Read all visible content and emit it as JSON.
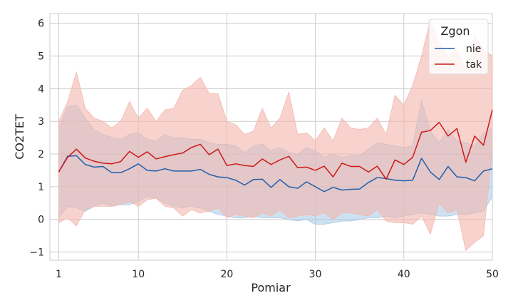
{
  "chart_data": {
    "type": "line",
    "xlabel": "Pomiar",
    "ylabel": "CO2TET",
    "xlim": [
      0,
      50
    ],
    "ylim": [
      -1.25,
      6.3
    ],
    "xticks": [
      1,
      10,
      20,
      30,
      40,
      50
    ],
    "yticks": [
      -1,
      0,
      1,
      2,
      3,
      4,
      5,
      6
    ],
    "ytick_labels": [
      "−1",
      "0",
      "1",
      "2",
      "3",
      "4",
      "5",
      "6"
    ],
    "grid": true,
    "legend": {
      "title": "Zgon",
      "position": "top-right"
    },
    "x": [
      1,
      2,
      3,
      4,
      5,
      6,
      7,
      8,
      9,
      10,
      11,
      12,
      13,
      14,
      15,
      16,
      17,
      18,
      19,
      20,
      21,
      22,
      23,
      24,
      25,
      26,
      27,
      28,
      29,
      30,
      31,
      32,
      33,
      34,
      35,
      36,
      37,
      38,
      39,
      40,
      41,
      42,
      43,
      44,
      45,
      46,
      47,
      48,
      49,
      50
    ],
    "series": [
      {
        "name": "nie",
        "color": "#1f5fae",
        "band_color": "#a6c8e6",
        "values": [
          1.45,
          1.93,
          1.95,
          1.68,
          1.6,
          1.62,
          1.43,
          1.43,
          1.55,
          1.7,
          1.5,
          1.48,
          1.55,
          1.48,
          1.48,
          1.48,
          1.53,
          1.38,
          1.3,
          1.28,
          1.2,
          1.05,
          1.22,
          1.23,
          0.98,
          1.22,
          1.0,
          0.95,
          1.15,
          1.0,
          0.85,
          0.98,
          0.9,
          0.92,
          0.93,
          1.13,
          1.28,
          1.25,
          1.2,
          1.18,
          1.2,
          1.87,
          1.45,
          1.22,
          1.62,
          1.3,
          1.28,
          1.18,
          1.48,
          1.55
        ],
        "lower": [
          0.05,
          0.4,
          0.35,
          0.25,
          0.4,
          0.5,
          0.4,
          0.45,
          0.45,
          0.55,
          0.7,
          0.65,
          0.5,
          0.4,
          0.35,
          0.4,
          0.35,
          0.25,
          0.15,
          0.1,
          0.05,
          0.05,
          0.1,
          0.05,
          0.05,
          0.05,
          0.0,
          -0.05,
          0.0,
          -0.15,
          -0.15,
          -0.1,
          -0.05,
          -0.05,
          0.0,
          0.05,
          0.05,
          0.1,
          0.05,
          0.1,
          0.15,
          0.2,
          0.15,
          0.1,
          0.1,
          0.15,
          0.15,
          0.2,
          0.25,
          0.7
        ],
        "upper": [
          2.8,
          3.45,
          3.5,
          3.1,
          2.75,
          2.6,
          2.5,
          2.45,
          2.6,
          2.65,
          2.45,
          2.4,
          2.6,
          2.5,
          2.5,
          2.45,
          2.45,
          2.35,
          2.3,
          2.3,
          2.25,
          2.05,
          2.25,
          2.3,
          2.1,
          2.2,
          2.05,
          2.0,
          2.2,
          2.1,
          1.9,
          2.0,
          1.9,
          1.95,
          1.95,
          2.15,
          2.35,
          2.3,
          2.25,
          2.2,
          2.25,
          3.65,
          2.7,
          2.35,
          2.75,
          2.4,
          2.35,
          2.25,
          2.65,
          2.8
        ]
      },
      {
        "name": "tak",
        "color": "#cc1a1a",
        "band_color": "#f4b6ae",
        "values": [
          1.45,
          1.9,
          2.15,
          1.88,
          1.78,
          1.72,
          1.7,
          1.77,
          2.08,
          1.9,
          2.07,
          1.85,
          1.92,
          1.98,
          2.03,
          2.2,
          2.3,
          1.98,
          2.15,
          1.65,
          1.7,
          1.65,
          1.62,
          1.85,
          1.68,
          1.82,
          1.93,
          1.58,
          1.6,
          1.5,
          1.63,
          1.3,
          1.72,
          1.62,
          1.62,
          1.45,
          1.63,
          1.23,
          1.82,
          1.68,
          1.9,
          2.67,
          2.72,
          2.97,
          2.55,
          2.78,
          1.75,
          2.55,
          2.27,
          3.35
        ],
        "lower": [
          -0.1,
          0.05,
          -0.2,
          0.3,
          0.4,
          0.4,
          0.4,
          0.45,
          0.55,
          0.4,
          0.6,
          0.65,
          0.4,
          0.35,
          0.1,
          0.3,
          0.2,
          0.25,
          0.35,
          0.05,
          0.15,
          0.1,
          0.05,
          0.2,
          0.1,
          0.3,
          0.05,
          0.1,
          0.15,
          0.1,
          0.2,
          0.0,
          0.2,
          0.2,
          0.15,
          0.1,
          0.3,
          -0.05,
          -0.1,
          -0.1,
          -0.15,
          0.1,
          -0.45,
          0.5,
          0.2,
          0.3,
          -0.95,
          -0.7,
          -0.5,
          2.1
        ],
        "upper": [
          3.0,
          3.6,
          4.5,
          3.4,
          3.1,
          3.0,
          2.8,
          3.0,
          3.6,
          3.1,
          3.4,
          3.0,
          3.35,
          3.4,
          3.95,
          4.1,
          4.35,
          3.85,
          3.85,
          3.0,
          2.9,
          2.6,
          2.7,
          3.4,
          2.8,
          3.1,
          3.9,
          2.6,
          2.65,
          2.4,
          2.8,
          2.4,
          3.1,
          2.8,
          2.75,
          2.8,
          3.1,
          2.6,
          3.8,
          3.5,
          4.1,
          5.0,
          6.1,
          5.4,
          5.0,
          5.2,
          4.6,
          5.6,
          5.2,
          5.0
        ]
      }
    ]
  }
}
